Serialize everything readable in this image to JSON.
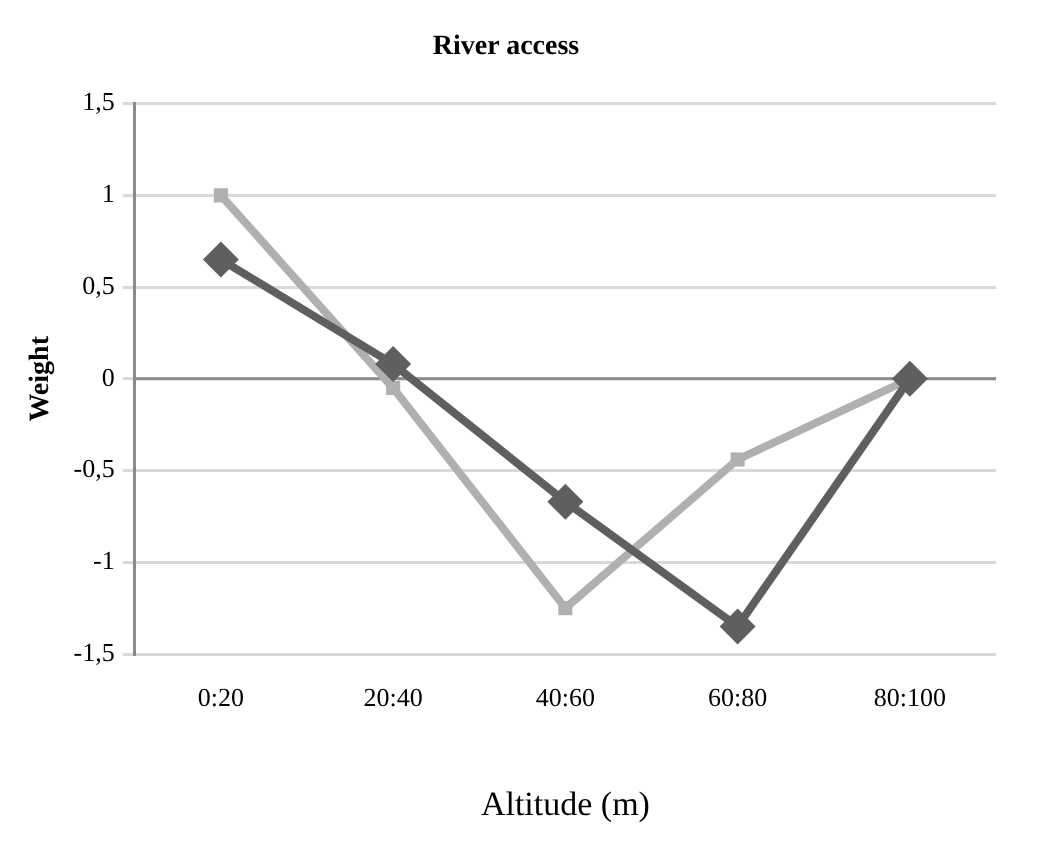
{
  "chart_data": {
    "type": "line",
    "title": "River access",
    "xlabel": "Altitude (m)",
    "ylabel": "Weight",
    "categories": [
      "0:20",
      "20:40",
      "40:60",
      "60:80",
      "80:100"
    ],
    "series": [
      {
        "color": "#5f5f5f",
        "marker": "diamond",
        "values": [
          0.65,
          0.08,
          -0.67,
          -1.35,
          0
        ]
      },
      {
        "color": "#b0b0b0",
        "marker": "square",
        "values": [
          1.0,
          -0.05,
          -1.25,
          -0.44,
          0
        ]
      }
    ],
    "ylim": [
      -1.5,
      1.5
    ],
    "yticks": [
      {
        "value": -1.5,
        "label": "-1,5"
      },
      -1,
      {
        "value": -0.5,
        "label": "-0,5"
      },
      0,
      {
        "value": 0.5,
        "label": "0,5"
      },
      1,
      {
        "value": 1.5,
        "label": "1,5"
      }
    ],
    "ref_lines": [
      {
        "axis": "y",
        "value": 0,
        "color": "#8c8c8c"
      }
    ],
    "grid": "y",
    "legend": false,
    "line_style": "solid"
  }
}
